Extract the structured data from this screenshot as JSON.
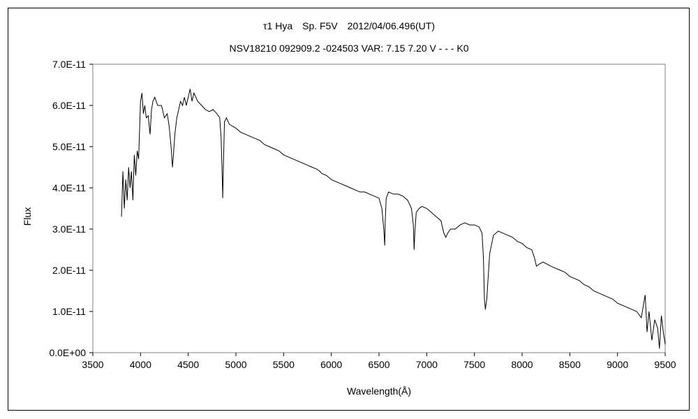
{
  "chart_data": {
    "type": "line",
    "title": "τ1 Hya　Sp. F5V　2012/04/06.496(UT)",
    "subtitle": "NSV18210 092909.2 -024503 VAR: 7.15 7.20 V - - - K0",
    "xlabel": "Wavelength(Å)",
    "ylabel": "Flux",
    "xlim": [
      3500,
      9500
    ],
    "ylim": [
      0,
      7e-11
    ],
    "xticks": [
      "3500",
      "4000",
      "4500",
      "5000",
      "5500",
      "6000",
      "6500",
      "7000",
      "7500",
      "8000",
      "8500",
      "9000",
      "9500"
    ],
    "yticks": [
      "0.0E+00",
      "1.0E-11",
      "2.0E-11",
      "3.0E-11",
      "4.0E-11",
      "5.0E-11",
      "6.0E-11",
      "7.0E-11"
    ],
    "grid": false,
    "legend": "none",
    "series_color": "#000000",
    "series": [
      {
        "x": [
          3800,
          3815,
          3830,
          3845,
          3860,
          3875,
          3890,
          3905,
          3920,
          3935,
          3950,
          3965,
          3980,
          4000,
          4015,
          4030,
          4045,
          4060,
          4080,
          4100,
          4115,
          4130,
          4150,
          4180,
          4220,
          4250,
          4280,
          4300,
          4320,
          4335,
          4345,
          4360,
          4380,
          4400,
          4420,
          4440,
          4460,
          4480,
          4500,
          4520,
          4540,
          4560,
          4580,
          4600,
          4640,
          4680,
          4720,
          4760,
          4800,
          4830,
          4845,
          4855,
          4862,
          4868,
          4880,
          4900,
          4930,
          4960,
          5000,
          5050,
          5100,
          5150,
          5200,
          5250,
          5300,
          5350,
          5400,
          5450,
          5500,
          5550,
          5600,
          5650,
          5700,
          5750,
          5800,
          5850,
          5880,
          5900,
          5950,
          6000,
          6050,
          6100,
          6150,
          6200,
          6250,
          6300,
          6350,
          6400,
          6450,
          6500,
          6530,
          6550,
          6560,
          6565,
          6575,
          6600,
          6650,
          6700,
          6750,
          6800,
          6840,
          6860,
          6868,
          6875,
          6890,
          6920,
          6950,
          7000,
          7050,
          7100,
          7150,
          7180,
          7200,
          7220,
          7250,
          7300,
          7350,
          7400,
          7450,
          7500,
          7550,
          7580,
          7595,
          7605,
          7615,
          7630,
          7660,
          7700,
          7750,
          7800,
          7850,
          7900,
          7950,
          8000,
          8050,
          8100,
          8130,
          8150,
          8180,
          8220,
          8260,
          8300,
          8350,
          8400,
          8450,
          8500,
          8550,
          8600,
          8650,
          8700,
          8750,
          8800,
          8850,
          8900,
          8950,
          9000,
          9050,
          9100,
          9150,
          9200,
          9250,
          9290,
          9310,
          9330,
          9360,
          9390,
          9420,
          9440,
          9460,
          9480,
          9500
        ],
        "y": [
          3.3e-11,
          4.4e-11,
          3.5e-11,
          4.2e-11,
          3.7e-11,
          4.5e-11,
          4e-11,
          4.4e-11,
          3.7e-11,
          4.8e-11,
          4.3e-11,
          4.9e-11,
          4.7e-11,
          6.1e-11,
          6.3e-11,
          5.8e-11,
          6e-11,
          5.7e-11,
          5.75e-11,
          5.3e-11,
          5.9e-11,
          6.1e-11,
          6.2e-11,
          6e-11,
          6e-11,
          5.7e-11,
          5.8e-11,
          5.5e-11,
          5e-11,
          4.5e-11,
          4.8e-11,
          5.3e-11,
          5.7e-11,
          5.9e-11,
          6.1e-11,
          6e-11,
          6.2e-11,
          6e-11,
          6.2e-11,
          6.4e-11,
          6.1e-11,
          6.3e-11,
          6.2e-11,
          6.1e-11,
          6e-11,
          5.9e-11,
          5.85e-11,
          5.9e-11,
          5.8e-11,
          5.7e-11,
          5.2e-11,
          4.4e-11,
          3.75e-11,
          4.5e-11,
          5.6e-11,
          5.7e-11,
          5.55e-11,
          5.5e-11,
          5.45e-11,
          5.35e-11,
          5.3e-11,
          5.25e-11,
          5.2e-11,
          5.15e-11,
          5.05e-11,
          5e-11,
          4.95e-11,
          4.9e-11,
          4.8e-11,
          4.75e-11,
          4.7e-11,
          4.65e-11,
          4.6e-11,
          4.55e-11,
          4.5e-11,
          4.45e-11,
          4.4e-11,
          4.35e-11,
          4.3e-11,
          4.2e-11,
          4.15e-11,
          4.1e-11,
          4.05e-11,
          4e-11,
          3.95e-11,
          3.9e-11,
          3.9e-11,
          3.85e-11,
          3.8e-11,
          3.75e-11,
          3.5e-11,
          3e-11,
          2.6e-11,
          3.2e-11,
          3.75e-11,
          3.9e-11,
          3.85e-11,
          3.85e-11,
          3.8e-11,
          3.7e-11,
          3.5e-11,
          3.1e-11,
          2.5e-11,
          2.9e-11,
          3.4e-11,
          3.5e-11,
          3.55e-11,
          3.5e-11,
          3.4e-11,
          3.3e-11,
          3.2e-11,
          2.9e-11,
          2.8e-11,
          2.9e-11,
          3e-11,
          3e-11,
          3.1e-11,
          3.15e-11,
          3.1e-11,
          3.1e-11,
          3.05e-11,
          2.9e-11,
          2.3e-11,
          1.3e-11,
          1.05e-11,
          1.3e-11,
          2.4e-11,
          2.85e-11,
          2.95e-11,
          2.9e-11,
          2.85e-11,
          2.8e-11,
          2.7e-11,
          2.65e-11,
          2.55e-11,
          2.5e-11,
          2.3e-11,
          2.1e-11,
          2.15e-11,
          2.2e-11,
          2.15e-11,
          2.1e-11,
          2.05e-11,
          2e-11,
          1.95e-11,
          1.85e-11,
          1.8e-11,
          1.75e-11,
          1.65e-11,
          1.6e-11,
          1.5e-11,
          1.45e-11,
          1.4e-11,
          1.35e-11,
          1.3e-11,
          1.2e-11,
          1.15e-11,
          1.1e-11,
          1.05e-11,
          1e-11,
          8.5e-12,
          1.4e-11,
          5e-12,
          1e-11,
          3e-12,
          8e-12,
          6e-12,
          1e-12,
          9e-12,
          5e-12,
          2e-12
        ]
      }
    ]
  }
}
